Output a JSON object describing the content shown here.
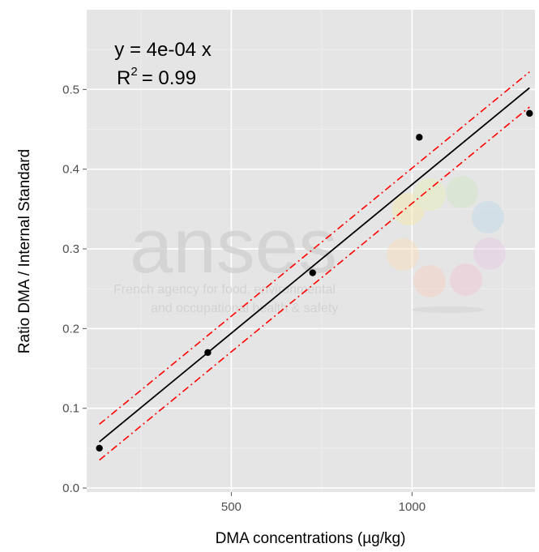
{
  "chart_data": {
    "type": "scatter",
    "xlabel": "DMA concentrations (µg/kg)",
    "ylabel": "Ratio DMA / Internal Standard",
    "xlim": [
      100,
      1340
    ],
    "ylim": [
      -0.005,
      0.6
    ],
    "x_ticks": [
      500,
      1000
    ],
    "y_ticks": [
      0.0,
      0.1,
      0.2,
      0.3,
      0.4,
      0.5
    ],
    "x_tick_labels": [
      "500",
      "1000"
    ],
    "y_tick_labels": [
      "0.0",
      "0.1",
      "0.2",
      "0.3",
      "0.4",
      "0.5"
    ],
    "grid": true,
    "points": {
      "x": [
        135,
        435,
        725,
        1020,
        1325
      ],
      "y": [
        0.05,
        0.17,
        0.27,
        0.44,
        0.47
      ]
    },
    "fit_line": {
      "x": [
        135,
        1325
      ],
      "y": [
        0.058,
        0.502
      ]
    },
    "upper_band": {
      "x": [
        135,
        1325
      ],
      "y": [
        0.08,
        0.522
      ]
    },
    "lower_band": {
      "x": [
        135,
        1325
      ],
      "y": [
        0.035,
        0.478
      ]
    },
    "annotation": {
      "equation": "y = 4e-04 x",
      "r2_prefix": "R",
      "r2_sup": "2",
      "r2_value": "= 0.99"
    }
  },
  "colors": {
    "panel_bg": "#e5e5e5",
    "grid_major": "#ffffff",
    "grid_minor": "#f0f0f0",
    "fit_line": "#000000",
    "bands": "#ff0000",
    "points": "#000000"
  },
  "watermark": {
    "logo_text": "anses",
    "tagline_1": "French agency for food, environmental",
    "tagline_2": "and occupational health & safety"
  }
}
